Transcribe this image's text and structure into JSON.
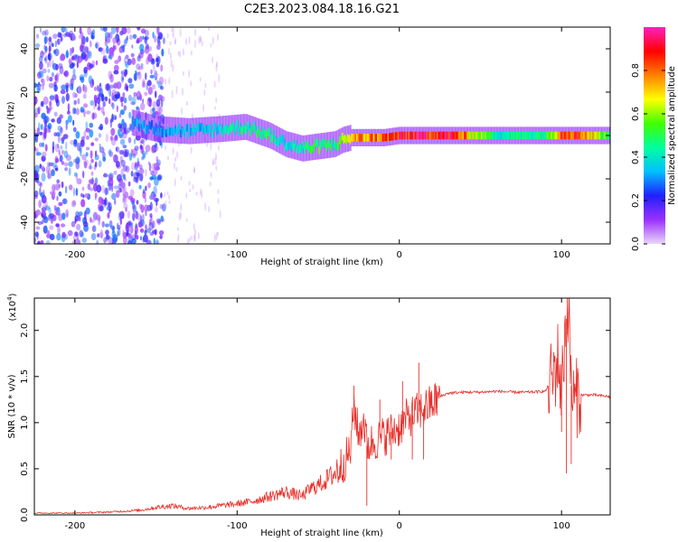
{
  "figure_title": "C2E3.2023.084.18.16.G21",
  "colors": {
    "spectrogram_low": "#8a2be2",
    "trace_line": "#e8302a",
    "colorbar_stops": [
      "#e8d8f8",
      "#9b30ff",
      "#2020ff",
      "#00c0ff",
      "#00ffa0",
      "#40ff00",
      "#ffff00",
      "#ff8000",
      "#ff0000",
      "#ff20c0"
    ]
  },
  "chart_data": [
    {
      "type": "heatmap",
      "title": "C2E3.2023.084.18.16.G21",
      "xlabel": "Height of straight line (km)",
      "ylabel": "Frequency (Hz)",
      "xlim": [
        -225,
        130
      ],
      "ylim": [
        -50,
        50
      ],
      "x_ticks": [
        -200,
        -100,
        0,
        100
      ],
      "x_tick_labels": [
        "-200",
        "-100",
        "0",
        "100"
      ],
      "y_ticks": [
        -40,
        -20,
        0,
        20,
        40
      ],
      "y_tick_labels": [
        "-40",
        "-20",
        "0",
        "20",
        "40"
      ],
      "grid": false,
      "colorbar": {
        "label": "Normalized spectral amplitude",
        "range": [
          0,
          1
        ],
        "ticks": [
          0.0,
          0.2,
          0.4,
          0.6,
          0.8
        ],
        "tick_labels": [
          "0.0",
          "0.2",
          "0.4",
          "0.6",
          "0.8"
        ],
        "colormap": "rainbow"
      },
      "ridge_trend": {
        "x": [
          -165,
          -150,
          -130,
          -110,
          -95,
          -80,
          -70,
          -60,
          -50,
          -40,
          -35,
          -30,
          -20,
          -10,
          0,
          10,
          30,
          60,
          90,
          100,
          110,
          130
        ],
        "frequency": [
          6,
          3,
          2,
          3,
          4,
          0,
          -4,
          -6,
          -5,
          -4,
          -2,
          -1,
          -1,
          -1,
          0,
          0,
          0,
          0,
          0,
          0,
          0,
          0
        ],
        "amplitude": [
          0.35,
          0.3,
          0.35,
          0.4,
          0.45,
          0.5,
          0.4,
          0.45,
          0.55,
          0.45,
          0.6,
          0.75,
          0.8,
          0.85,
          0.9,
          0.95,
          0.95,
          0.45,
          0.5,
          0.95,
          0.9,
          0.5
        ]
      },
      "noise_region_x": [
        -225,
        -145
      ]
    },
    {
      "type": "line",
      "xlabel": "Height of straight line (km)",
      "ylabel": "SNR (10 * v/v)",
      "y_exponent_label": "(x10",
      "y_exponent": "4",
      "xlim": [
        -225,
        130
      ],
      "ylim": [
        0,
        2.35
      ],
      "x_ticks": [
        -200,
        -100,
        0,
        100
      ],
      "x_tick_labels": [
        "-200",
        "-100",
        "0",
        "100"
      ],
      "y_ticks": [
        0.0,
        0.5,
        1.0,
        1.5,
        2.0
      ],
      "y_tick_labels": [
        "0.0",
        "0.5",
        "1.0",
        "1.5",
        "2.0"
      ],
      "grid": false,
      "series": [
        {
          "x": [
            -225,
            -200,
            -180,
            -160,
            -150,
            -140,
            -130,
            -120,
            -110,
            -100,
            -90,
            -80,
            -70,
            -60,
            -55,
            -50,
            -45,
            -40,
            -35,
            -30,
            -28,
            -25,
            -22,
            -20,
            -15,
            -10,
            -5,
            0,
            5,
            10,
            15,
            20,
            25,
            30,
            40,
            50,
            60,
            70,
            80,
            90,
            95,
            98,
            100,
            102,
            104,
            106,
            108,
            110,
            120,
            130
          ],
          "y": [
            0.02,
            0.02,
            0.03,
            0.05,
            0.08,
            0.1,
            0.07,
            0.08,
            0.1,
            0.12,
            0.15,
            0.2,
            0.25,
            0.2,
            0.28,
            0.32,
            0.38,
            0.45,
            0.55,
            0.7,
            1.2,
            0.85,
            1.05,
            0.75,
            0.8,
            0.85,
            0.9,
            0.95,
            1.05,
            1.1,
            1.15,
            1.2,
            1.28,
            1.32,
            1.33,
            1.33,
            1.34,
            1.33,
            1.33,
            1.34,
            1.5,
            1.7,
            1.3,
            1.95,
            2.3,
            1.4,
            1.2,
            1.3,
            1.3,
            1.28
          ]
        },
        {
          "x": [
            -28,
            -20,
            -12,
            -5,
            2,
            8,
            12,
            15,
            100,
            103,
            106
          ],
          "y": [
            1.4,
            0.1,
            1.25,
            0.6,
            1.45,
            0.6,
            1.65,
            0.6,
            0.9,
            0.45,
            0.55
          ]
        }
      ]
    }
  ]
}
